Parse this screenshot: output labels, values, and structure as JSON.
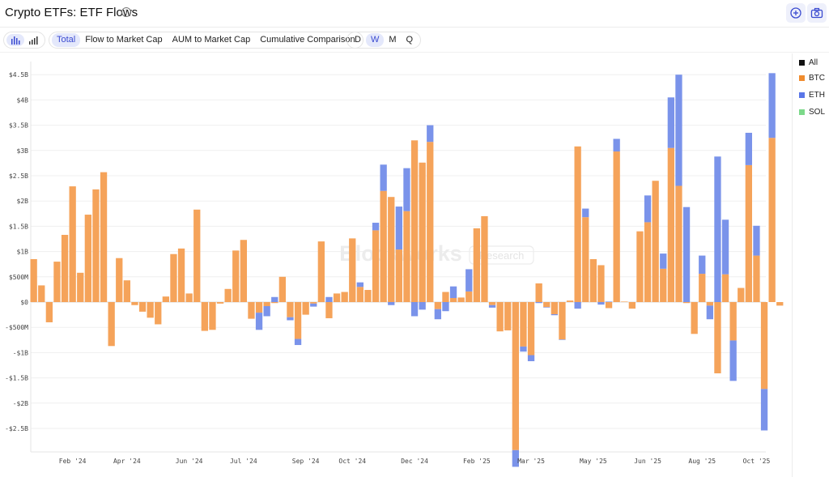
{
  "header": {
    "title": "Crypto ETFs: ETF Flows",
    "info_icon": "info-circle-icon",
    "add_icon": "plus-circle-icon",
    "camera_icon": "camera-icon"
  },
  "toolbar": {
    "chart_types": [
      "bar-chart-icon",
      "bar-chart-alt-icon"
    ],
    "views": [
      "Total",
      "Flow to Market Cap",
      "AUM to Market Cap",
      "Cumulative Comparison"
    ],
    "active_view": "Total",
    "intervals": [
      "D",
      "W",
      "M",
      "Q"
    ],
    "active_interval": "W"
  },
  "watermark": {
    "brand": "Blockworks",
    "tag": "Research"
  },
  "colors": {
    "accent": "#3a4ad0",
    "All": "#111111",
    "BTC": "#f5a35a",
    "ETH": "#7a93ea",
    "SOL": "#86dc93"
  },
  "legend": [
    "All",
    "BTC",
    "ETH",
    "SOL"
  ],
  "chart_data": {
    "type": "bar",
    "stacked": true,
    "units": "USD millions",
    "y_ticks": [
      4500,
      4000,
      3500,
      3000,
      2500,
      2000,
      1500,
      1000,
      500,
      0,
      -500,
      -1000,
      -1500,
      -2000,
      -2500
    ],
    "y_tick_labels": [
      "$4.5B",
      "$4B",
      "$3.5B",
      "$3B",
      "$2.5B",
      "$2B",
      "$1.5B",
      "$1B",
      "$500M",
      "$0",
      "-$500M",
      "-$1B",
      "-$1.5B",
      "-$2B",
      "-$2.5B"
    ],
    "ylim": [
      -2950,
      4650
    ],
    "x_tick_labels": [
      "Feb '24",
      "Apr '24",
      "Jun '24",
      "Jul '24",
      "Sep '24",
      "Oct '24",
      "Dec '24",
      "Feb '25",
      "Mar '25",
      "May '25",
      "Jun '25",
      "Aug '25",
      "Oct '25"
    ],
    "x_tick_weeks": [
      5,
      12,
      20,
      27,
      35,
      41,
      49,
      57,
      64,
      72,
      79,
      86,
      93
    ],
    "grid": true,
    "legend_position": "right",
    "series": [
      {
        "name": "BTC",
        "values": [
          850,
          330,
          -400,
          800,
          1330,
          2290,
          580,
          1730,
          2230,
          2570,
          -870,
          870,
          430,
          -60,
          -190,
          -310,
          -440,
          110,
          950,
          1060,
          170,
          1830,
          -570,
          -550,
          -30,
          260,
          1020,
          1230,
          -330,
          -210,
          -80,
          -20,
          500,
          -300,
          -730,
          -250,
          -30,
          1200,
          -320,
          170,
          200,
          1260,
          300,
          240,
          1420,
          2200,
          2080,
          1040,
          1800,
          3200,
          2760,
          3170,
          -140,
          200,
          80,
          90,
          210,
          1460,
          1700,
          -60,
          -580,
          -560,
          -2930,
          -880,
          -1050,
          370,
          -100,
          -240,
          -740,
          30,
          3080,
          1680,
          850,
          730,
          -120,
          2980,
          10,
          -130,
          1400,
          1580,
          2400,
          660,
          3050,
          2300,
          -20,
          -630,
          560,
          -70,
          -1410,
          550,
          -760,
          280,
          2710,
          920,
          -1720,
          3250,
          -70
        ],
        "y_tick_label_note": ""
      },
      {
        "name": "ETH",
        "values": [
          0,
          0,
          0,
          0,
          0,
          0,
          0,
          0,
          0,
          0,
          0,
          0,
          0,
          0,
          0,
          0,
          0,
          0,
          0,
          0,
          0,
          0,
          0,
          0,
          0,
          0,
          0,
          0,
          0,
          -340,
          -200,
          100,
          0,
          -60,
          -120,
          0,
          -60,
          0,
          100,
          0,
          0,
          0,
          90,
          0,
          150,
          520,
          -60,
          850,
          850,
          -280,
          -150,
          330,
          -200,
          -180,
          230,
          0,
          440,
          0,
          0,
          -50,
          0,
          0,
          -330,
          -100,
          -120,
          -20,
          -10,
          -20,
          -10,
          0,
          -130,
          170,
          0,
          -50,
          10,
          250,
          0,
          0,
          0,
          530,
          0,
          300,
          1000,
          2200,
          1880,
          0,
          360,
          -270,
          2880,
          1080,
          -800,
          0,
          640,
          590,
          -820,
          1280,
          0
        ],
        "y_tick_label_note": ""
      },
      {
        "name": "SOL",
        "values": [
          0,
          0,
          0,
          0,
          0,
          0,
          0,
          0,
          0,
          0,
          0,
          0,
          0,
          0,
          0,
          0,
          0,
          0,
          0,
          0,
          0,
          0,
          0,
          0,
          0,
          0,
          0,
          0,
          0,
          0,
          0,
          0,
          0,
          0,
          0,
          0,
          0,
          0,
          0,
          0,
          0,
          0,
          0,
          0,
          0,
          0,
          0,
          0,
          0,
          0,
          0,
          0,
          0,
          0,
          0,
          0,
          0,
          0,
          0,
          0,
          0,
          0,
          0,
          0,
          0,
          0,
          0,
          0,
          0,
          0,
          0,
          0,
          0,
          0,
          0,
          0,
          0,
          0,
          0,
          0,
          0,
          0,
          0,
          0,
          0,
          0,
          0,
          0,
          0,
          0,
          0,
          0,
          0,
          0,
          0,
          0,
          0,
          0
        ],
        "y_tick_label_note": ""
      }
    ]
  }
}
